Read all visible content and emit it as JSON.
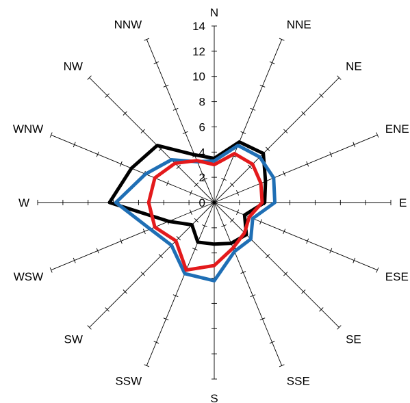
{
  "chart_data": {
    "type": "radar",
    "title": "",
    "directions": [
      "N",
      "NNE",
      "NE",
      "ENE",
      "E",
      "ESE",
      "SE",
      "SSE",
      "S",
      "SSW",
      "SW",
      "WSW",
      "W",
      "WNW",
      "NW",
      "NNW"
    ],
    "radial_ticks": [
      "0",
      "2",
      "4",
      "6",
      "8",
      "10",
      "12",
      "14"
    ],
    "rlim": [
      0,
      14
    ],
    "series": [
      {
        "color": "#000000",
        "values": [
          3.5,
          5.2,
          5.5,
          4.4,
          4.0,
          2.6,
          3.6,
          3.5,
          3.3,
          3.4,
          2.5,
          3.9,
          8.3,
          7.1,
          6.4,
          4.1
        ]
      },
      {
        "color": "#1f6fb5",
        "values": [
          3.3,
          4.9,
          5.1,
          5.1,
          4.8,
          3.3,
          4.1,
          4.2,
          6.2,
          6.1,
          4.8,
          5.5,
          7.8,
          5.9,
          4.8,
          3.5
        ]
      },
      {
        "color": "#e31a1c",
        "values": [
          3.0,
          4.2,
          4.3,
          4.0,
          3.8,
          3.0,
          3.4,
          3.9,
          5.0,
          5.8,
          4.3,
          5.1,
          5.2,
          5.1,
          4.4,
          3.6
        ]
      }
    ]
  }
}
